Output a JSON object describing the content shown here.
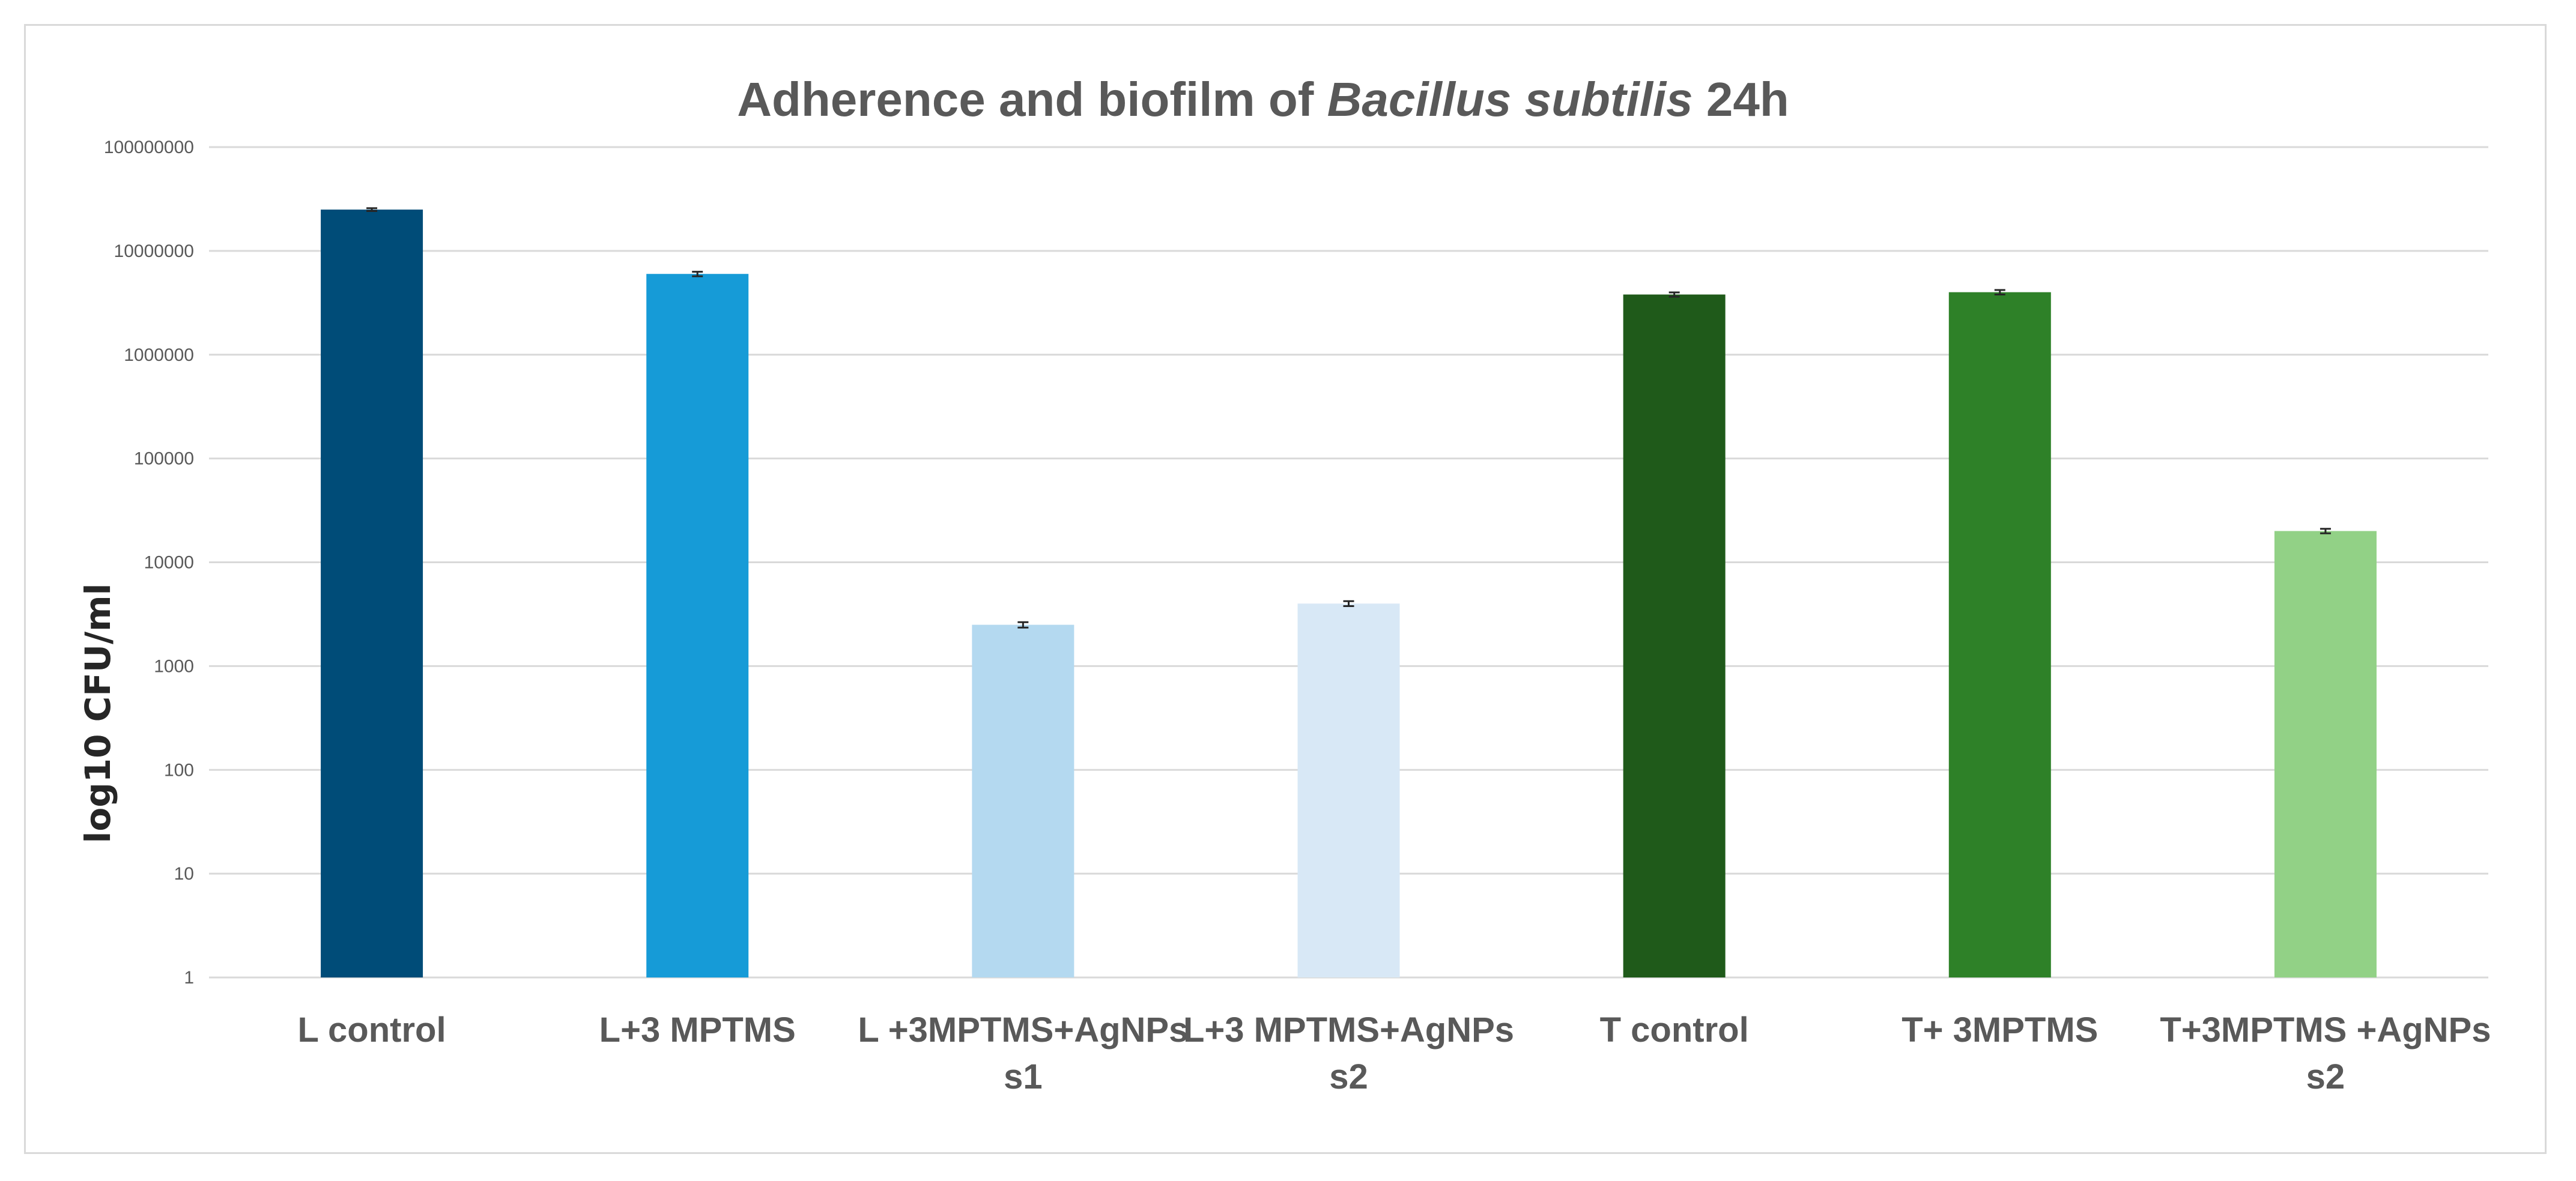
{
  "chart_data": {
    "type": "bar",
    "title": "Adherence and biofilm of",
    "title_italic": "Bacillus subtilis",
    "title_suffix": "24h",
    "ylabel": "log10 CFU/ml",
    "xlabel": "",
    "y_scale": "log10",
    "ylim": [
      1,
      100000000
    ],
    "yticks": [
      "1",
      "10",
      "100",
      "1000",
      "10000",
      "100000",
      "1000000",
      "10000000",
      "100000000"
    ],
    "grid": true,
    "legend": "none",
    "categories": [
      [
        "L control"
      ],
      [
        "L+3 MPTMS"
      ],
      [
        "L +3MPTMS+AgNPs",
        "s1"
      ],
      [
        "L+3 MPTMS+AgNPs",
        "s2"
      ],
      [
        "T control"
      ],
      [
        "T+ 3MPTMS"
      ],
      [
        "T+3MPTMS +AgNPs",
        "s2"
      ]
    ],
    "values": [
      25000000,
      6000000,
      2500,
      4000,
      3800000,
      4000000,
      20000
    ],
    "error": [
      800000,
      300000,
      150,
      220,
      180000,
      200000,
      1000
    ],
    "colors": [
      "#004c78",
      "#169bd7",
      "#b4d9f0",
      "#d8e8f6",
      "#1f5a1a",
      "#2e8128",
      "#92d186"
    ]
  }
}
